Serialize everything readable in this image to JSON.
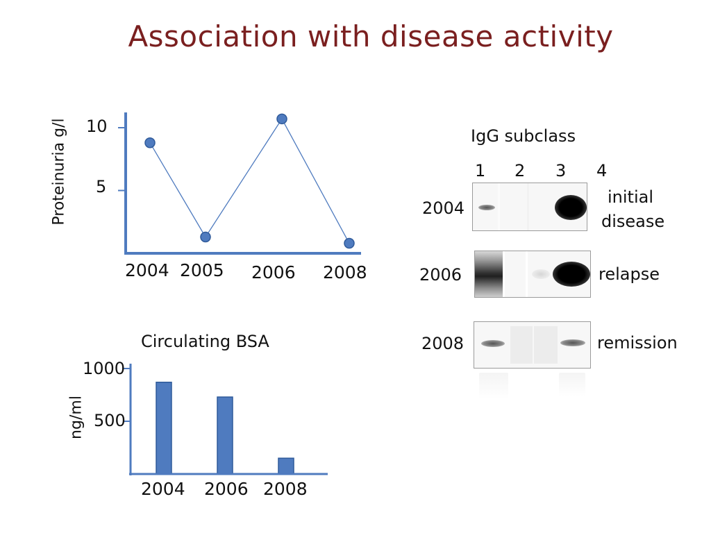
{
  "title": "Association with disease activity",
  "chart_data": [
    {
      "type": "line",
      "ylabel": "Proteinuria g/l",
      "categories": [
        "2004",
        "2005",
        "2006",
        "2008"
      ],
      "values": [
        8.8,
        1.3,
        10.7,
        0.8
      ],
      "ytick_labels": [
        "10",
        "5"
      ],
      "ylim": [
        0,
        11.5
      ],
      "color": "#4f7bbf"
    },
    {
      "type": "bar",
      "title": "Circulating BSA",
      "ylabel": "ng/ml",
      "categories": [
        "2004",
        "2006",
        "2008"
      ],
      "values": [
        870,
        730,
        150
      ],
      "ytick_labels": [
        "1000",
        "500"
      ],
      "ylim": [
        0,
        1050
      ],
      "color": "#4f7bbf"
    }
  ],
  "blot": {
    "title": "IgG subclass",
    "lanes": [
      "1",
      "2",
      "3",
      "4"
    ],
    "rows": [
      {
        "year": "2004",
        "label_line1": "initial",
        "label_line2": "disease"
      },
      {
        "year": "2006",
        "label_line1": "relapse",
        "label_line2": ""
      },
      {
        "year": "2008",
        "label_line1": "remission",
        "label_line2": ""
      }
    ]
  }
}
